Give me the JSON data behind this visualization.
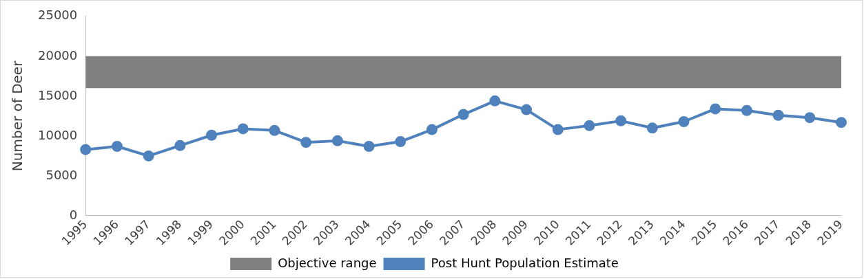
{
  "chart_data": {
    "type": "line",
    "ylabel": "Number of Deer",
    "categories": [
      "1995",
      "1996",
      "1997",
      "1998",
      "1999",
      "2000",
      "2001",
      "2002",
      "2003",
      "2004",
      "2005",
      "2006",
      "2007",
      "2008",
      "2009",
      "2010",
      "2011",
      "2012",
      "2013",
      "2014",
      "2015",
      "2016",
      "2017",
      "2018",
      "2019"
    ],
    "series": [
      {
        "name": "Post Hunt Population Estimate",
        "color": "#4f81bd",
        "values": [
          8300,
          8700,
          7500,
          8800,
          10100,
          10900,
          10700,
          9200,
          9400,
          8700,
          9300,
          10800,
          12700,
          14400,
          13300,
          10800,
          11300,
          11900,
          11000,
          11800,
          13400,
          13200,
          12600,
          12300,
          11700
        ]
      }
    ],
    "bands": [
      {
        "axis": "y",
        "from": 16000,
        "to": 20000,
        "label": "Objective range",
        "color": "#808080"
      }
    ],
    "ylim": [
      0,
      25000
    ],
    "yticks": [
      0,
      5000,
      10000,
      15000,
      20000,
      25000
    ],
    "marker": "circle",
    "legend": "bottom",
    "grid": false
  }
}
